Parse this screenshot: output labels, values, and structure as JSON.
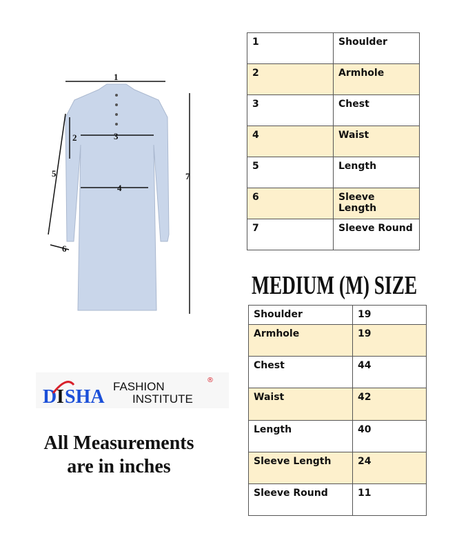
{
  "diagram": {
    "labels": [
      "1",
      "2",
      "3",
      "4",
      "5",
      "6",
      "7"
    ],
    "shirt_color": "#c9d6ea"
  },
  "legend_table": [
    {
      "num": "1",
      "name": "Shoulder"
    },
    {
      "num": "2",
      "name": "Armhole"
    },
    {
      "num": "3",
      "name": "Chest"
    },
    {
      "num": "4",
      "name": "Waist"
    },
    {
      "num": "5",
      "name": "Length"
    },
    {
      "num": "6",
      "name": "Sleeve Length"
    },
    {
      "num": "7",
      "name": "Sleeve Round"
    }
  ],
  "size_title": "MEDIUM (M) SIZE",
  "size_table": [
    {
      "name": "Shoulder",
      "value": "19"
    },
    {
      "name": "Armhole",
      "value": "19"
    },
    {
      "name": "Chest",
      "value": "44"
    },
    {
      "name": "Waist",
      "value": "42"
    },
    {
      "name": "Length",
      "value": "40"
    },
    {
      "name": "Sleeve Length",
      "value": "24"
    },
    {
      "name": "Sleeve Round",
      "value": "11"
    }
  ],
  "logo": {
    "text_main": "DISHA",
    "text_fashion": "FASHION",
    "text_institute": "INSTITUTE",
    "registered": "®"
  },
  "note": {
    "line1": "All Measurements",
    "line2": "are in inches"
  },
  "colors": {
    "highlight_row": "#fdf0cc",
    "logo_blue": "#1b4fd8",
    "logo_red": "#d8202a"
  }
}
